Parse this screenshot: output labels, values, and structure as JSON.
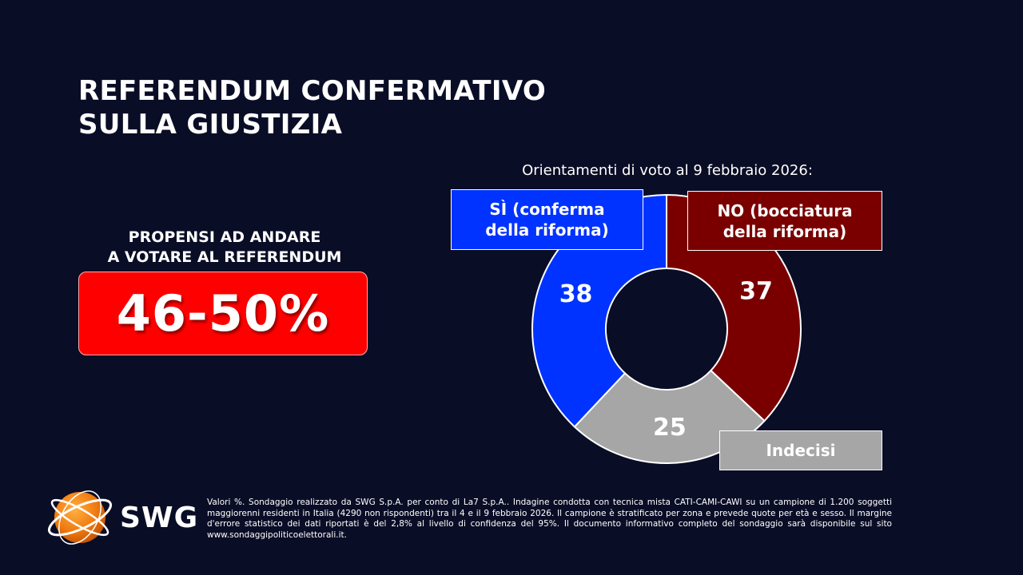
{
  "title": {
    "line1": "REFERENDUM CONFERMATIVO",
    "line2": "SULLA GIUSTIZIA"
  },
  "turnout": {
    "label_line1": "PROPENSI AD ANDARE",
    "label_line2": "A VOTARE AL REFERENDUM",
    "value": "46-50%"
  },
  "chart_data": {
    "type": "pie",
    "variant": "donut",
    "title": "Orientamenti di voto al 9 febbraio 2026:",
    "unit": "%",
    "categories": [
      "SÌ (conferma della riforma)",
      "NO (bocciatura della riforma)",
      "Indecisi"
    ],
    "category_lines": [
      [
        "SÌ (conferma",
        "della riforma)"
      ],
      [
        "NO (bocciatura",
        "della riforma)"
      ],
      [
        "Indecisi"
      ]
    ],
    "values": [
      38,
      37,
      25
    ],
    "colors": [
      "#0033ff",
      "#7a0000",
      "#a6a6a6"
    ]
  },
  "footer": {
    "note": "Valori %. Sondaggio realizzato da SWG S.p.A. per conto di La7 S.p.A.. Indagine condotta con tecnica mista CATI-CAMI-CAWI su un campione di 1.200 soggetti maggiorenni residenti in Italia (4290 non rispondenti) tra il 4 e il 9 febbraio 2026. Il campione è stratificato per zona e prevede quote per età e sesso. Il margine d'errore statistico dei dati riportati è del 2,8% al livello di confidenza del 95%. Il documento informativo completo del sondaggio sarà disponibile sul sito www.sondaggipoliticoelettorali.it."
  },
  "logo": {
    "text": "SWG"
  }
}
